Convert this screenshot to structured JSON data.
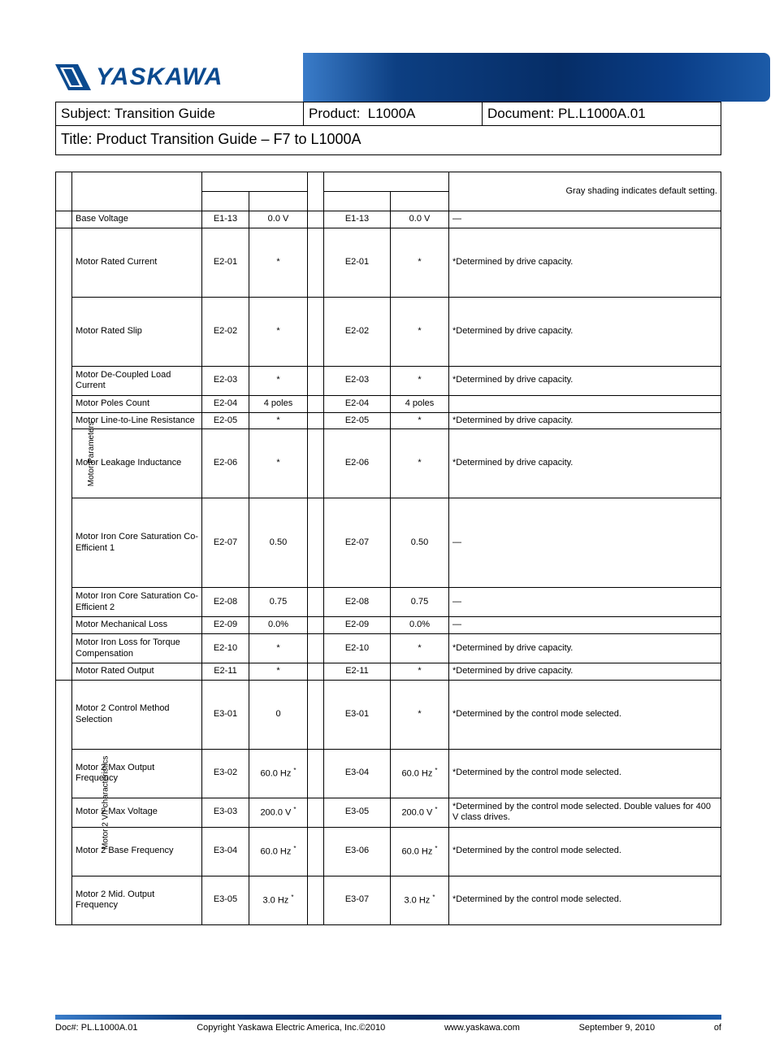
{
  "brand": "YASKAWA",
  "header": {
    "subject_label": "Subject:",
    "subject": "Transition Guide",
    "product_label": "Product:",
    "product": "L1000A",
    "doc_label": "Document:",
    "doc": "PL.L1000A.01",
    "title_label": "Title:",
    "title": "Product Transition Guide – F7 to L1000A"
  },
  "legend": "Gray shading indicates default setting.",
  "categories": [
    {
      "label": "Motor Parameters",
      "start": 1,
      "span": 11
    },
    {
      "label": "Motor 2 V/f characteristics",
      "start": 12,
      "span": 5
    }
  ],
  "rows": [
    {
      "h": "short",
      "cat": "",
      "name": "Base Voltage",
      "p1": "E1-13",
      "v1": "0.0 V",
      "p2": "E1-13",
      "v2": "0.0 V",
      "note": "—"
    },
    {
      "h": "tall",
      "cat": "g1",
      "name": "Motor Rated Current",
      "p1": "E2-01",
      "v1": "*",
      "p2": "E2-01",
      "v2": "*",
      "note": "*Determined by drive capacity."
    },
    {
      "h": "tall",
      "cat": "g1",
      "name": "Motor Rated Slip",
      "p1": "E2-02",
      "v1": "*",
      "p2": "E2-02",
      "v2": "*",
      "note": "*Determined by drive capacity."
    },
    {
      "h": "med",
      "cat": "g1",
      "name": "Motor De-Coupled Load Current",
      "p1": "E2-03",
      "v1": "*",
      "p2": "E2-03",
      "v2": "*",
      "note": "*Determined by drive capacity."
    },
    {
      "h": "short",
      "cat": "g1",
      "name": "Motor Poles Count",
      "p1": "E2-04",
      "v1": "4 poles",
      "p2": "E2-04",
      "v2": "4 poles",
      "note": ""
    },
    {
      "h": "short",
      "cat": "g1",
      "name": "Motor Line-to-Line Resistance",
      "p1": "E2-05",
      "v1": "*",
      "p2": "E2-05",
      "v2": "*",
      "note": "*Determined by drive capacity."
    },
    {
      "h": "tall",
      "cat": "g1",
      "name": "Motor Leakage Inductance",
      "p1": "E2-06",
      "v1": "*",
      "p2": "E2-06",
      "v2": "*",
      "note": "*Determined by drive capacity."
    },
    {
      "h": "xl",
      "cat": "g1",
      "name": "Motor Iron Core Saturation Co-Efficient 1",
      "p1": "E2-07",
      "v1": "0.50",
      "p2": "E2-07",
      "v2": "0.50",
      "note": "—"
    },
    {
      "h": "med",
      "cat": "g1",
      "name": "Motor Iron Core Saturation Co-Efficient 2",
      "p1": "E2-08",
      "v1": "0.75",
      "p2": "E2-08",
      "v2": "0.75",
      "note": "—"
    },
    {
      "h": "short",
      "cat": "g1",
      "name": "Motor Mechanical Loss",
      "p1": "E2-09",
      "v1": "0.0%",
      "p2": "E2-09",
      "v2": "0.0%",
      "note": "—"
    },
    {
      "h": "med",
      "cat": "g1",
      "name": "Motor Iron Loss for Torque Compensation",
      "p1": "E2-10",
      "v1": "*",
      "p2": "E2-10",
      "v2": "*",
      "note": "*Determined by drive capacity."
    },
    {
      "h": "short",
      "cat": "g1",
      "name": "Motor Rated Output",
      "p1": "E2-11",
      "v1": "*",
      "p2": "E2-11",
      "v2": "*",
      "note": "*Determined by drive capacity."
    },
    {
      "h": "tall",
      "cat": "g2",
      "name": "Motor 2 Control Method Selection",
      "p1": "E3-01",
      "v1": "0",
      "p2": "E3-01",
      "v2": "*",
      "note": "*Determined by the control mode selected."
    },
    {
      "h": "tallish",
      "cat": "g2",
      "name": "Motor 2 Max Output Frequency",
      "p1": "E3-02",
      "v1": "60.0 Hz",
      "sup1": "*",
      "p2": "E3-04",
      "v2": "60.0 Hz",
      "sup2": "*",
      "note": "*Determined by the control mode selected."
    },
    {
      "h": "med",
      "cat": "g2",
      "name": "Motor 2 Max Voltage",
      "p1": "E3-03",
      "v1": "200.0 V",
      "sup1": "*",
      "p2": "E3-05",
      "v2": "200.0 V",
      "sup2": "*",
      "note": "*Determined by the control mode selected. Double values for 400 V class drives."
    },
    {
      "h": "tallish",
      "cat": "g2",
      "name": "Motor 2 Base Frequency",
      "p1": "E3-04",
      "v1": "60.0 Hz",
      "sup1": "*",
      "p2": "E3-06",
      "v2": "60.0 Hz",
      "sup2": "*",
      "note": "*Determined by the control mode selected."
    },
    {
      "h": "tallish",
      "cat": "g2",
      "name": "Motor 2 Mid. Output Frequency",
      "p1": "E3-05",
      "v1": "3.0 Hz",
      "sup1": "*",
      "p2": "E3-07",
      "v2": "3.0 Hz",
      "sup2": "*",
      "note": "*Determined by the control mode selected."
    }
  ],
  "footer": {
    "docnum": "Doc#: PL.L1000A.01",
    "copyright": "Copyright Yaskawa Electric America, Inc.©2010",
    "url": "www.yaskawa.com",
    "date": "September 9, 2010",
    "page": "of"
  },
  "colors": {
    "brand_blue": "#0b4a8f",
    "banner_grad_a": "#3a7cc9",
    "banner_grad_b": "#062d66",
    "border": "#000000",
    "bg": "#ffffff"
  }
}
